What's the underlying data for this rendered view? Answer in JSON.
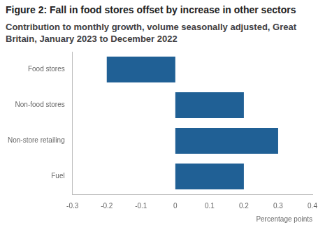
{
  "chart_data": {
    "type": "bar",
    "orientation": "horizontal",
    "title": "Figure 2: Fall in food stores offset by increase in other sectors",
    "subtitle": "Contribution to monthly growth, volume seasonally adjusted, Great Britain, January 2023 to December 2022",
    "x_label": "Percentage points",
    "categories": [
      "Food stores",
      "Non-food stores",
      "Non-store retailing",
      "Fuel"
    ],
    "values": [
      -0.2,
      0.2,
      0.3,
      0.2
    ],
    "color": "#206095",
    "xlim": [
      -0.3,
      0.4
    ],
    "xticks": [
      -0.3,
      -0.2,
      -0.1,
      0,
      0.1,
      0.2,
      0.3,
      0.4
    ],
    "grid": false
  }
}
